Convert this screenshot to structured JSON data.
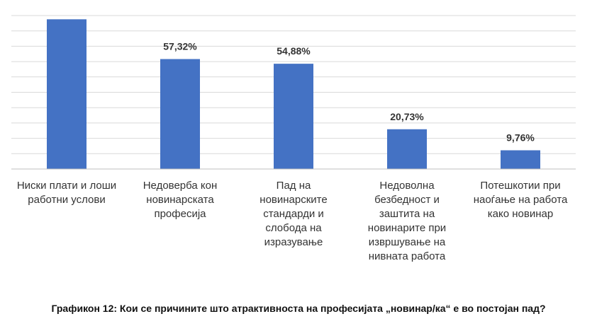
{
  "chart_data": {
    "type": "bar",
    "title": "",
    "xlabel": "",
    "ylabel": "",
    "categories": [
      "Ниски плати и лоши\nработни услови",
      "Недоверба кон\nновинарската\nпрофесија",
      "Пад на\nновинарските\nстандарди и\nслобода на\nизразување",
      "Недоволна\nбезбедност и\nзаштита на\nновинарите при\nизвршување на\nнивната работа",
      "Потешкотии при\nнаоѓање на работа\nкако новинар"
    ],
    "values": [
      78.05,
      57.32,
      54.88,
      20.73,
      9.76
    ],
    "data_labels": [
      "",
      "57,32%",
      "54,88%",
      "20,73%",
      "9,76%"
    ],
    "ylim": [
      0,
      80
    ],
    "grid": true,
    "colors": {
      "bar": "#4472C4",
      "grid": "#d9d9d9",
      "axis": "#bfbfbf"
    }
  },
  "caption": "Графикон 12: Кои се причините што атрактивноста на професијата „новинар/ка“ е во постојан пад?"
}
